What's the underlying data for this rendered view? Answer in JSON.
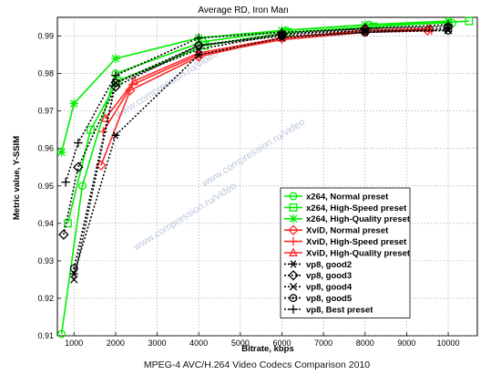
{
  "footer": "MPEG-4 AVC/H.264 Video Codecs Comparison 2010",
  "watermark": "www.compression.ru/video",
  "chart_data": {
    "type": "line",
    "title": "Average RD, Iron Man",
    "xlabel": "Bitrate, kbps",
    "ylabel": "Metric value, Y-SSIM",
    "xlim": [
      600,
      10700
    ],
    "ylim": [
      0.91,
      0.995
    ],
    "xticks": [
      1000,
      2000,
      3000,
      4000,
      5000,
      6000,
      7000,
      8000,
      9000,
      10000
    ],
    "xtick_labels": [
      "1000",
      "2000",
      "3000",
      "4000",
      "5000",
      "6000",
      "7000",
      "8000",
      "9000",
      "10000"
    ],
    "yticks": [
      0.91,
      0.92,
      0.93,
      0.94,
      0.95,
      0.96,
      0.97,
      0.98,
      0.99
    ],
    "ytick_labels": [
      "0.91",
      "0.92",
      "0.93",
      "0.94",
      "0.95",
      "0.96",
      "0.97",
      "0.98",
      "0.99"
    ],
    "grid": true,
    "legend_position": "lower right",
    "series": [
      {
        "name": "x264, Normal preset",
        "color": "#00ee00",
        "marker": "circle",
        "dash": "solid",
        "x": [
          700,
          1200,
          2000,
          4100,
          6100,
          8100,
          10100
        ],
        "y": [
          0.9105,
          0.95,
          0.98,
          0.9885,
          0.9915,
          0.993,
          0.9935
        ]
      },
      {
        "name": "x264, High-Speed preset",
        "color": "#00ee00",
        "marker": "square",
        "dash": "solid",
        "x": [
          850,
          1400,
          2050,
          4150,
          6150,
          8200,
          10500
        ],
        "y": [
          0.94,
          0.965,
          0.978,
          0.9875,
          0.991,
          0.9925,
          0.994
        ]
      },
      {
        "name": "x264, High-Quality preset",
        "color": "#00ee00",
        "marker": "star",
        "dash": "solid",
        "x": [
          700,
          1000,
          2000,
          4000,
          6000,
          8000,
          10000
        ],
        "y": [
          0.959,
          0.972,
          0.984,
          0.9895,
          0.9915,
          0.993,
          0.994
        ]
      },
      {
        "name": "XviD, Normal preset",
        "color": "#ff2a2a",
        "marker": "diamond",
        "dash": "solid",
        "x": [
          1650,
          2350,
          4000,
          6000,
          8000,
          9500
        ],
        "y": [
          0.9555,
          0.9755,
          0.9845,
          0.9895,
          0.9915,
          0.9915
        ]
      },
      {
        "name": "XviD, High-Speed preset",
        "color": "#ff2a2a",
        "marker": "plus",
        "dash": "solid",
        "x": [
          1700,
          2400,
          4000,
          6000,
          8000,
          9600
        ],
        "y": [
          0.9645,
          0.977,
          0.985,
          0.989,
          0.991,
          0.9915
        ]
      },
      {
        "name": "XviD, High-Quality preset",
        "color": "#ff2a2a",
        "marker": "triangle",
        "dash": "solid",
        "x": [
          1750,
          2450,
          4000,
          6000,
          8000,
          9550
        ],
        "y": [
          0.968,
          0.978,
          0.9855,
          0.9895,
          0.9915,
          0.992
        ]
      },
      {
        "name": "vp8, good2",
        "color": "#000000",
        "marker": "asterisk",
        "dash": "dotted",
        "x": [
          1000,
          2000,
          4000,
          6000,
          8000,
          10000
        ],
        "y": [
          0.9265,
          0.9635,
          0.985,
          0.9895,
          0.991,
          0.992
        ]
      },
      {
        "name": "vp8, good3",
        "color": "#000000",
        "marker": "diamond",
        "dash": "dotted",
        "x": [
          750,
          1100,
          2000,
          4000,
          6000,
          8000,
          10000
        ],
        "y": [
          0.937,
          0.955,
          0.9765,
          0.9875,
          0.9905,
          0.992,
          0.9925
        ]
      },
      {
        "name": "vp8, good4",
        "color": "#000000",
        "marker": "x",
        "dash": "dotted",
        "x": [
          1000,
          2000,
          4000,
          6000,
          8000,
          10000
        ],
        "y": [
          0.925,
          0.9775,
          0.9865,
          0.9905,
          0.9915,
          0.9915
        ]
      },
      {
        "name": "vp8, good5",
        "color": "#000000",
        "marker": "circle-dot",
        "dash": "dotted",
        "x": [
          1000,
          2000,
          4000,
          6000,
          8000,
          10000
        ],
        "y": [
          0.928,
          0.9775,
          0.9875,
          0.99,
          0.991,
          0.9915
        ]
      },
      {
        "name": "vp8, Best preset",
        "color": "#000000",
        "marker": "plus",
        "dash": "dotted",
        "x": [
          800,
          1100,
          2000,
          4000,
          6000,
          8000,
          10000
        ],
        "y": [
          0.951,
          0.9615,
          0.9795,
          0.9895,
          0.991,
          0.992,
          0.993
        ]
      }
    ]
  }
}
